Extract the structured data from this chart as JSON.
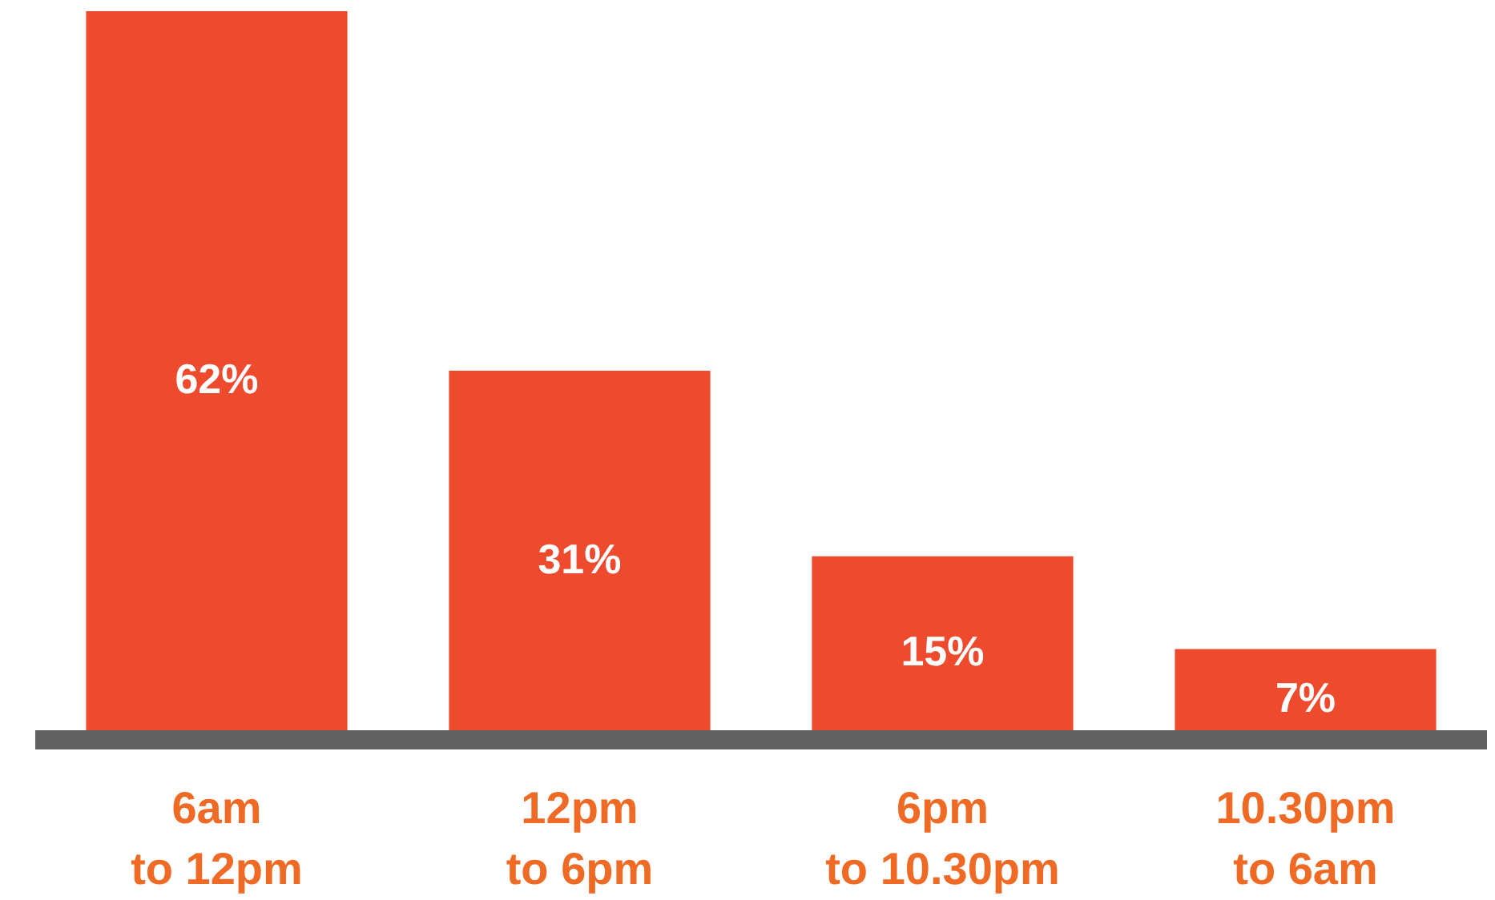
{
  "chart_data": {
    "type": "bar",
    "categories": [
      "6am to 12pm",
      "12pm to 6pm",
      "6pm to 10.30pm",
      "10.30pm to 6am"
    ],
    "values": [
      62,
      31,
      15,
      7
    ],
    "color": "#ee4a2e",
    "data_labels": true,
    "value_labels": [
      "62%",
      "31%",
      "15%",
      "7%"
    ]
  }
}
